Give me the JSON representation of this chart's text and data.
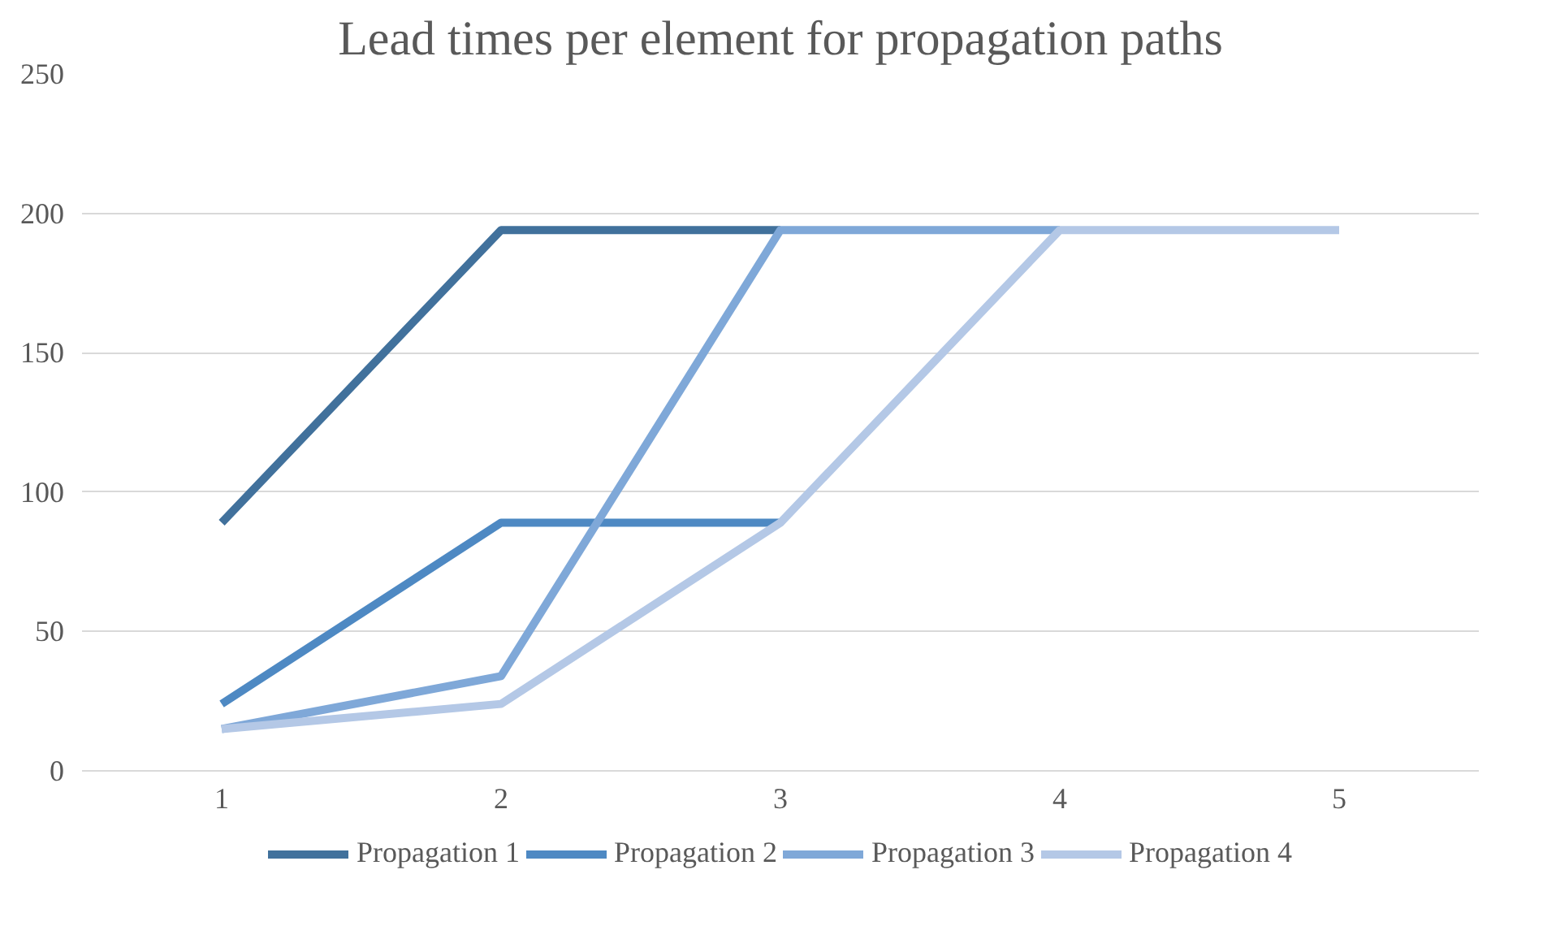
{
  "chart_data": {
    "type": "line",
    "title": "Lead times per element for propagation paths",
    "categories": [
      "1",
      "2",
      "3",
      "4",
      "5"
    ],
    "series": [
      {
        "name": "Propagation 1",
        "color": "#41719c",
        "values": [
          89,
          194,
          194,
          null,
          null
        ]
      },
      {
        "name": "Propagation 2",
        "color": "#4e89c3",
        "values": [
          24,
          89,
          89,
          null,
          null
        ]
      },
      {
        "name": "Propagation 3",
        "color": "#7fa8d8",
        "values": [
          15,
          34,
          194,
          194,
          null
        ]
      },
      {
        "name": "Propagation 4",
        "color": "#b4c8e6",
        "values": [
          15,
          24,
          89,
          194,
          194
        ]
      }
    ],
    "ylim": [
      0,
      250
    ],
    "yticks": [
      0,
      50,
      100,
      150,
      200,
      250
    ],
    "grid": "y",
    "legend": "bottom",
    "marker": "none",
    "line_style": "solid"
  }
}
